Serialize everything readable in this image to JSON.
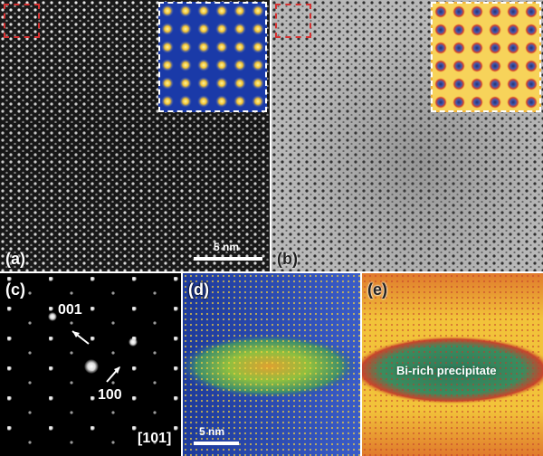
{
  "panels": {
    "a": {
      "label": "(a)",
      "scale_bar": "5 nm"
    },
    "b": {
      "label": "(b)"
    },
    "c": {
      "label": "(c)",
      "spot_001": "001",
      "spot_100": "100",
      "zone_axis": "[101]"
    },
    "d": {
      "label": "(d)",
      "scale_bar": "5 nm"
    },
    "e": {
      "label": "(e)",
      "annotation": "Bi-rich precipitate"
    }
  },
  "colors": {
    "haadf_bg": "#1a1a1a",
    "abf_bg": "#b8b8b8",
    "map_blue": "#2a4bb0",
    "map_green": "#6aa84f",
    "map_yellow": "#f2d03c",
    "map_red": "#d9452b",
    "roi_red": "#d63232"
  }
}
